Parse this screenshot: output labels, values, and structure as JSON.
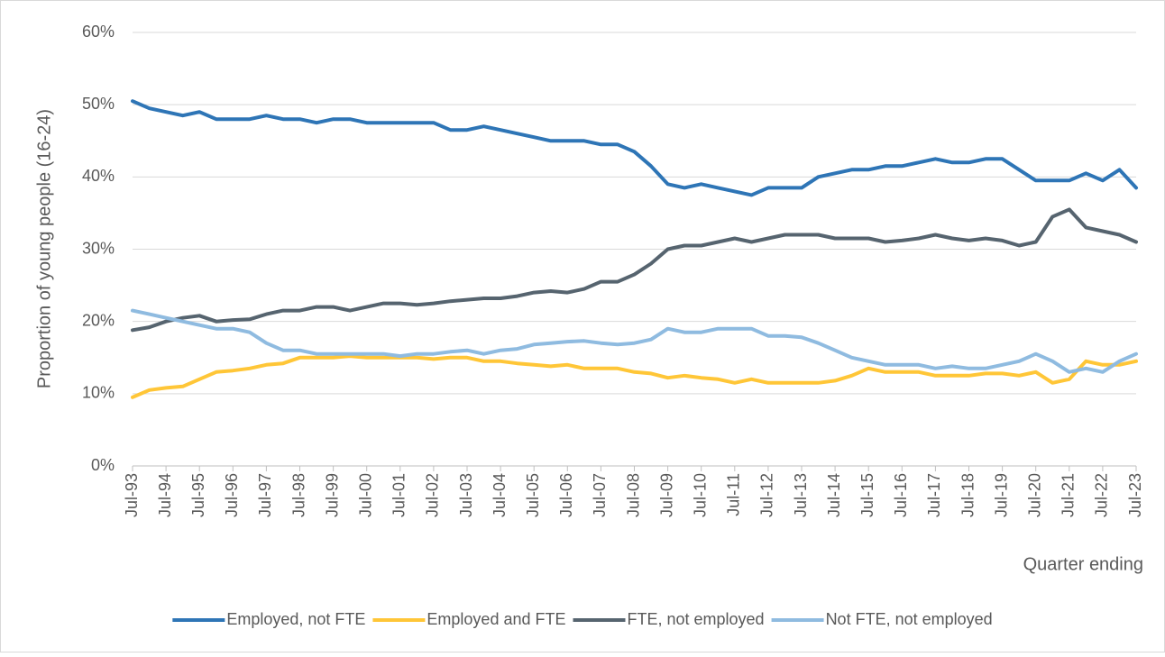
{
  "chart_data": {
    "type": "line",
    "y_label": "Proportion of young people (16-24)",
    "x_label": "Quarter ending",
    "ylim": [
      0,
      60
    ],
    "yticks": [
      {
        "value": 0,
        "label": "0%"
      },
      {
        "value": 10,
        "label": "10%"
      },
      {
        "value": 20,
        "label": "20%"
      },
      {
        "value": 30,
        "label": "30%"
      },
      {
        "value": 40,
        "label": "40%"
      },
      {
        "value": 50,
        "label": "50%"
      },
      {
        "value": 60,
        "label": "60%"
      }
    ],
    "grid": true,
    "legend": "bottom",
    "categories": [
      "Jul-93",
      null,
      "Jul-94",
      null,
      "Jul-95",
      null,
      "Jul-96",
      null,
      "Jul-97",
      null,
      "Jul-98",
      null,
      "Jul-99",
      null,
      "Jul-00",
      null,
      "Jul-01",
      null,
      "Jul-02",
      null,
      "Jul-03",
      null,
      "Jul-04",
      null,
      "Jul-05",
      null,
      "Jul-06",
      null,
      "Jul-07",
      null,
      "Jul-08",
      null,
      "Jul-09",
      null,
      "Jul-10",
      null,
      "Jul-11",
      null,
      "Jul-12",
      null,
      "Jul-13",
      null,
      "Jul-14",
      null,
      "Jul-15",
      null,
      "Jul-16",
      null,
      "Jul-17",
      null,
      "Jul-18",
      null,
      "Jul-19",
      null,
      "Jul-20",
      null,
      "Jul-21",
      null,
      "Jul-22",
      null,
      "Jul-23"
    ],
    "series": [
      {
        "name": "Employed, not FTE",
        "color": "#2e75b6",
        "values": [
          50.5,
          49.5,
          49,
          48.5,
          49,
          48,
          48,
          48,
          48.5,
          48,
          48,
          47.5,
          48,
          48,
          47.5,
          47.5,
          47.5,
          47.5,
          47.5,
          46.5,
          46.5,
          47,
          46.5,
          46,
          45.5,
          45,
          45,
          45,
          44.5,
          44.5,
          43.5,
          41.5,
          39,
          38.5,
          39,
          38.5,
          38,
          37.5,
          38.5,
          38.5,
          38.5,
          40,
          40.5,
          41,
          41,
          41.5,
          41.5,
          42,
          42.5,
          42,
          42,
          42.5,
          42.5,
          41,
          39.5,
          39.5,
          39.5,
          40.5,
          39.5,
          41,
          38.5
        ]
      },
      {
        "name": "Employed and FTE",
        "color": "#ffc637",
        "values": [
          9.5,
          10.5,
          10.8,
          11,
          12,
          13,
          13.2,
          13.5,
          14,
          14.2,
          15,
          15,
          15,
          15.2,
          15,
          15,
          15,
          15,
          14.8,
          15,
          15,
          14.5,
          14.5,
          14.2,
          14,
          13.8,
          14,
          13.5,
          13.5,
          13.5,
          13,
          12.8,
          12.2,
          12.5,
          12.2,
          12,
          11.5,
          12,
          11.5,
          11.5,
          11.5,
          11.5,
          11.8,
          12.5,
          13.5,
          13,
          13,
          13,
          12.5,
          12.5,
          12.5,
          12.8,
          12.8,
          12.5,
          13,
          11.5,
          12,
          14.5,
          14,
          14,
          14.5
        ]
      },
      {
        "name": "FTE, not employed",
        "color": "#56646f",
        "values": [
          18.8,
          19.2,
          20,
          20.5,
          20.8,
          20,
          20.2,
          20.3,
          21,
          21.5,
          21.5,
          22,
          22,
          21.5,
          22,
          22.5,
          22.5,
          22.3,
          22.5,
          22.8,
          23,
          23.2,
          23.2,
          23.5,
          24,
          24.2,
          24,
          24.5,
          25.5,
          25.5,
          26.5,
          28,
          30,
          30.5,
          30.5,
          31,
          31.5,
          31,
          31.5,
          32,
          32,
          32,
          31.5,
          31.5,
          31.5,
          31,
          31.2,
          31.5,
          32,
          31.5,
          31.2,
          31.5,
          31.2,
          30.5,
          31,
          34.5,
          35.5,
          33,
          32.5,
          32,
          31
        ]
      },
      {
        "name": "Not FTE, not employed",
        "color": "#8fbbe0",
        "values": [
          21.5,
          21,
          20.5,
          20,
          19.5,
          19,
          19,
          18.5,
          17,
          16,
          16,
          15.5,
          15.5,
          15.5,
          15.5,
          15.5,
          15.2,
          15.5,
          15.5,
          15.8,
          16,
          15.5,
          16,
          16.2,
          16.8,
          17,
          17.2,
          17.3,
          17,
          16.8,
          17,
          17.5,
          19,
          18.5,
          18.5,
          19,
          19,
          19,
          18,
          18,
          17.8,
          17,
          16,
          15,
          14.5,
          14,
          14,
          14,
          13.5,
          13.8,
          13.5,
          13.5,
          14,
          14.5,
          15.5,
          14.5,
          13,
          13.5,
          13,
          14.5,
          15.5
        ]
      }
    ]
  }
}
